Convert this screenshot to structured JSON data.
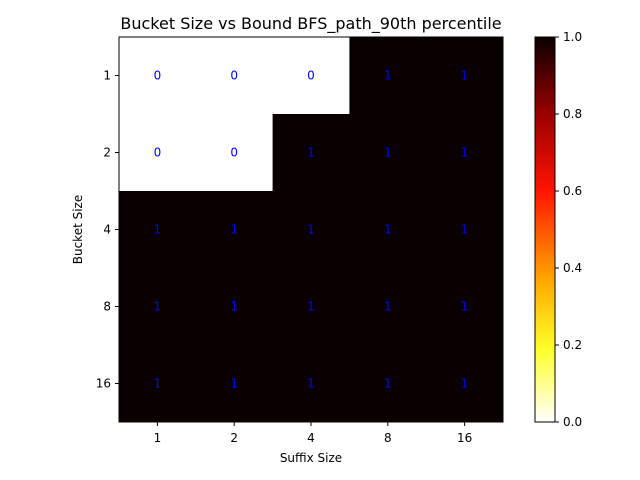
{
  "chart_data": {
    "type": "heatmap",
    "title": "Bucket Size vs Bound BFS_path_90th percentile",
    "xlabel": "Suffix Size",
    "ylabel": "Bucket Size",
    "x_categories": [
      "1",
      "2",
      "4",
      "8",
      "16"
    ],
    "y_categories": [
      "1",
      "2",
      "4",
      "8",
      "16"
    ],
    "values": [
      [
        0,
        0,
        0,
        1,
        1
      ],
      [
        0,
        0,
        1,
        1,
        1
      ],
      [
        1,
        1,
        1,
        1,
        1
      ],
      [
        1,
        1,
        1,
        1,
        1
      ],
      [
        1,
        1,
        1,
        1,
        1
      ]
    ],
    "cell_labels": [
      [
        "0",
        "0",
        "0",
        "1",
        "1"
      ],
      [
        "0",
        "0",
        "1",
        "1",
        "1"
      ],
      [
        "1",
        "1",
        "1",
        "1",
        "1"
      ],
      [
        "1",
        "1",
        "1",
        "1",
        "1"
      ],
      [
        "1",
        "1",
        "1",
        "1",
        "1"
      ]
    ],
    "colorscale": "hot_r",
    "value_range": [
      0,
      1
    ],
    "colorbar_ticks": [
      "0.0",
      "0.2",
      "0.4",
      "0.6",
      "0.8",
      "1.0"
    ],
    "annotation_color": "#0000ff",
    "low_color": "#ffffff",
    "high_color": "#0b0000"
  }
}
